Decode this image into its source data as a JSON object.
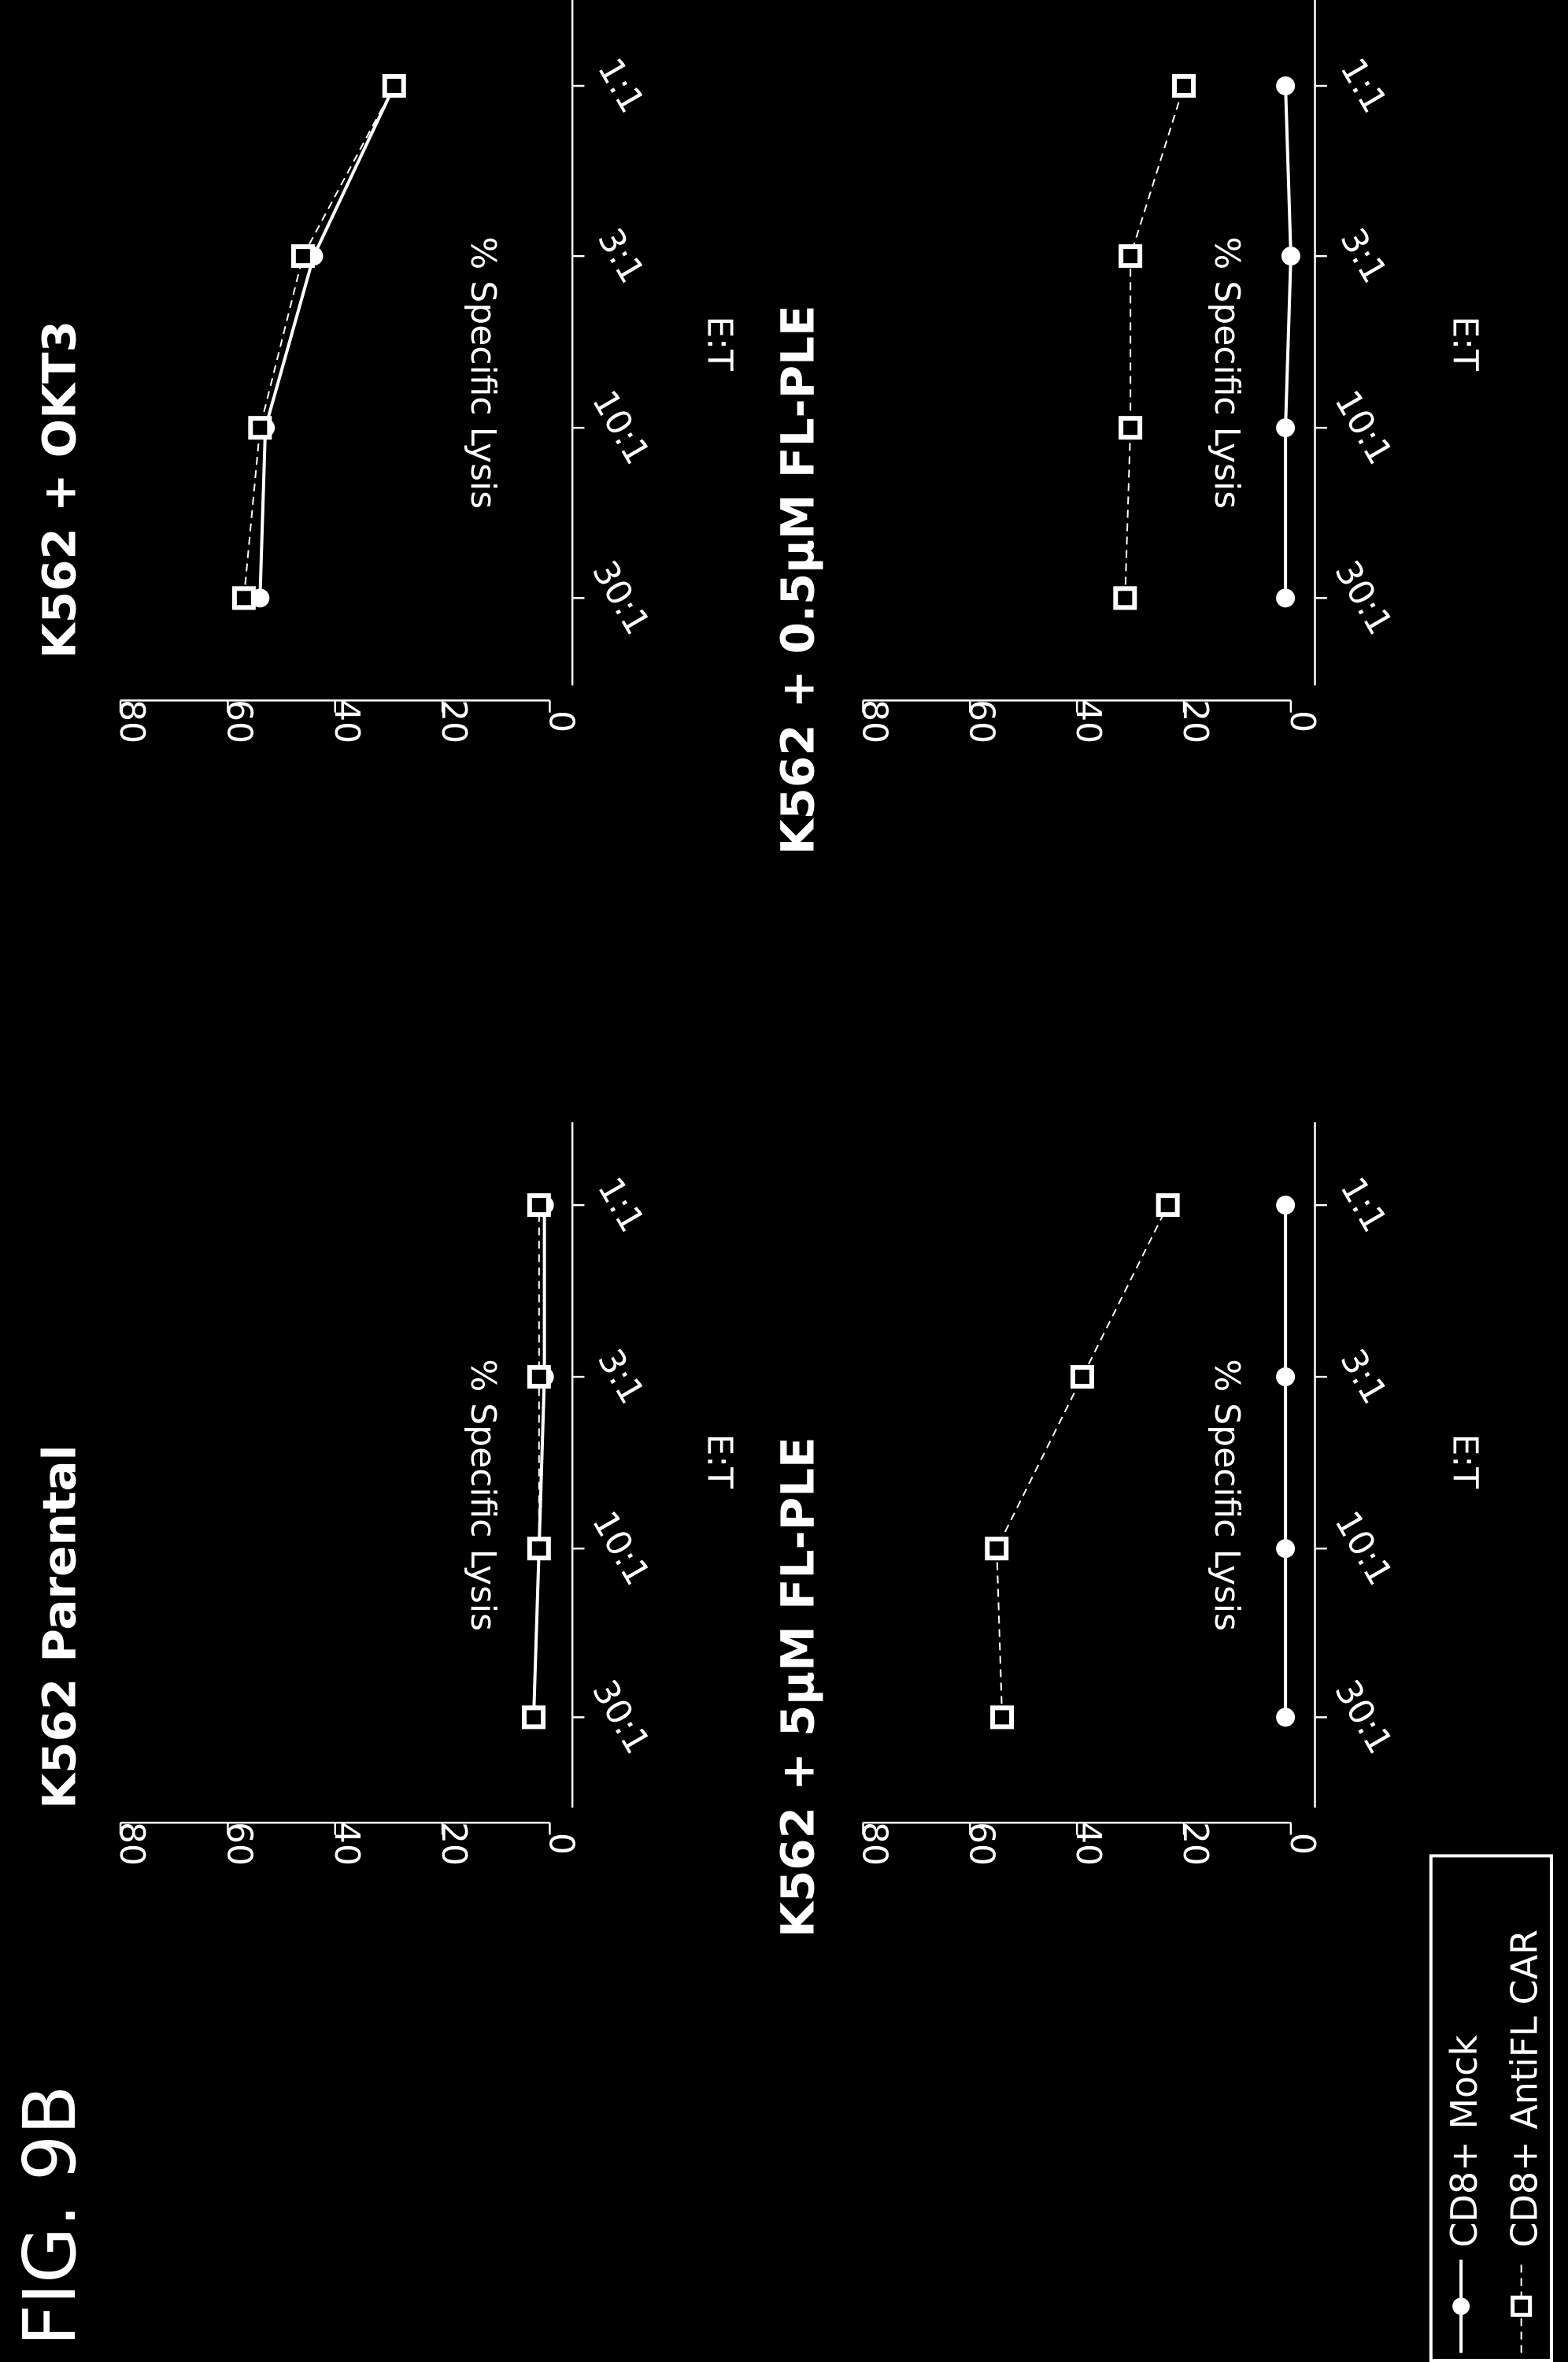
{
  "figure_title": "FIG. 9B",
  "legend": [
    {
      "label": "CD8+ Mock",
      "marker": "circle",
      "line": "solid"
    },
    {
      "label": "CD8+ AntiFL CAR",
      "marker": "square",
      "line": "dashed"
    }
  ],
  "colors": {
    "background": "#000000",
    "foreground": "#ffffff"
  },
  "chart_data": [
    {
      "type": "line",
      "title": "K562 Parental",
      "xlabel": "E:T",
      "ylabel": "% Specific Lysis",
      "categories": [
        "30:1",
        "10:1",
        "3:1",
        "1:1"
      ],
      "ylim": [
        0,
        80
      ],
      "yticks": [
        "0",
        "20",
        "40",
        "60",
        "80"
      ],
      "series": [
        {
          "name": "CD8+ Mock",
          "values": [
            3,
            2,
            1,
            1
          ]
        },
        {
          "name": "CD8+ AntiFL CAR",
          "values": [
            3,
            2,
            2,
            2
          ]
        }
      ]
    },
    {
      "type": "line",
      "title": "K562 + OKT3",
      "xlabel": "E:T",
      "ylabel": "% Specific Lysis",
      "categories": [
        "30:1",
        "10:1",
        "3:1",
        "1:1"
      ],
      "ylim": [
        0,
        80
      ],
      "yticks": [
        "0",
        "20",
        "40",
        "60",
        "80"
      ],
      "series": [
        {
          "name": "CD8+ Mock",
          "values": [
            54,
            53,
            44,
            29
          ]
        },
        {
          "name": "CD8+ AntiFL CAR",
          "values": [
            57,
            54,
            46,
            29
          ]
        }
      ]
    },
    {
      "type": "line",
      "title": "K562 + 5µM FL-PLE",
      "xlabel": "E:T",
      "ylabel": "% Specific Lysis",
      "categories": [
        "30:1",
        "10:1",
        "3:1",
        "1:1"
      ],
      "ylim": [
        0,
        80
      ],
      "yticks": [
        "0",
        "20",
        "40",
        "60",
        "80"
      ],
      "series": [
        {
          "name": "CD8+ Mock",
          "values": [
            1,
            1,
            1,
            1
          ]
        },
        {
          "name": "CD8+ AntiFL CAR",
          "values": [
            54,
            55,
            39,
            23
          ]
        }
      ]
    },
    {
      "type": "line",
      "title": "K562 + 0.5µM FL-PLE",
      "xlabel": "E:T",
      "ylabel": "% Specific Lysis",
      "categories": [
        "30:1",
        "10:1",
        "3:1",
        "1:1"
      ],
      "ylim": [
        0,
        80
      ],
      "yticks": [
        "0",
        "20",
        "40",
        "60",
        "80"
      ],
      "series": [
        {
          "name": "CD8+ Mock",
          "values": [
            1,
            1,
            0,
            1
          ]
        },
        {
          "name": "CD8+ AntiFL CAR",
          "values": [
            31,
            30,
            30,
            20
          ]
        }
      ]
    }
  ]
}
